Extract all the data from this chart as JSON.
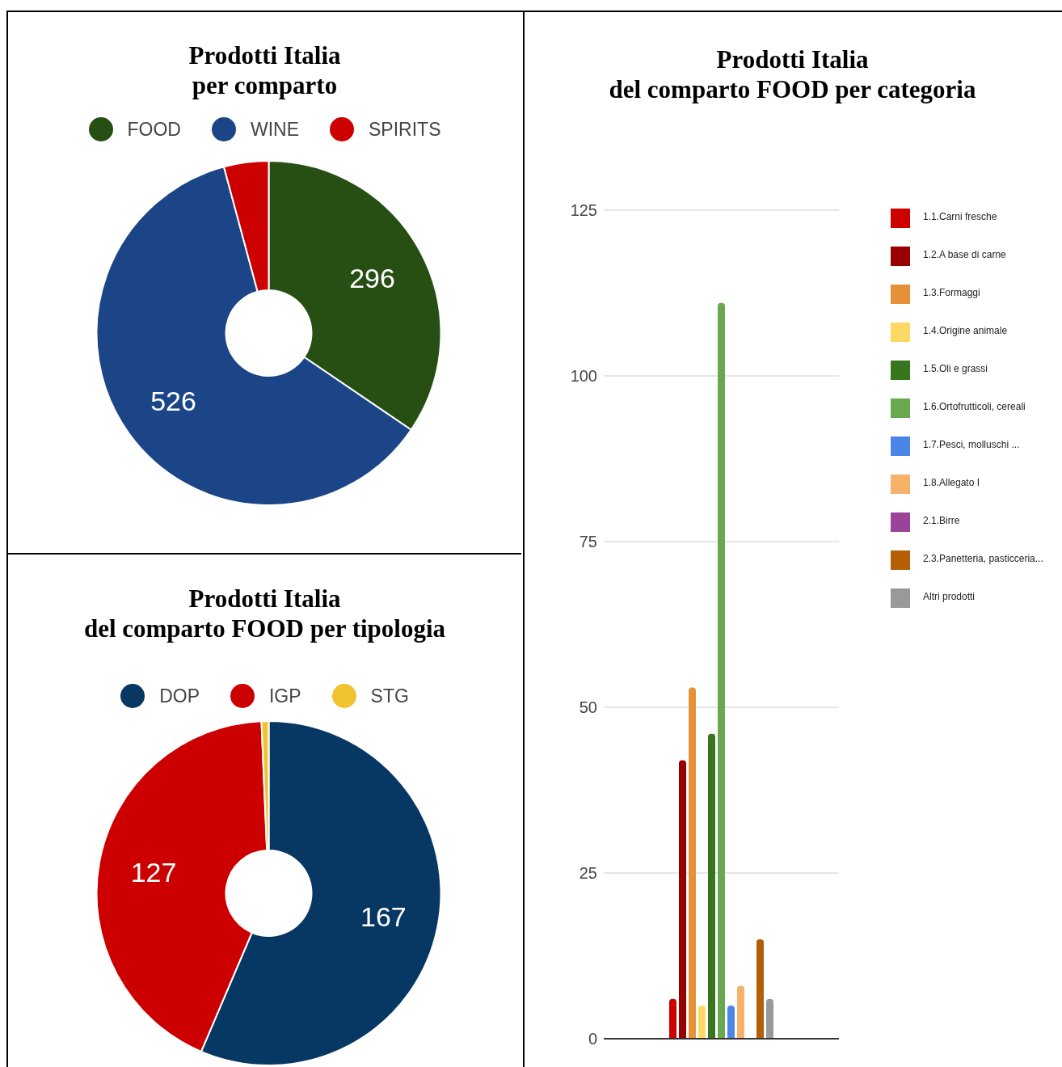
{
  "chart_data": [
    {
      "type": "donut",
      "title": "Prodotti Italia\nper comparto",
      "categories": [
        "FOOD",
        "WINE",
        "SPIRITS"
      ],
      "values": [
        296,
        526,
        36
      ],
      "colors": [
        "#274e13",
        "#1c4587",
        "#cc0000"
      ],
      "value_labels": [
        "296",
        "526",
        null
      ],
      "legend": "top"
    },
    {
      "type": "bar",
      "title": "Prodotti Italia\ndel comparto FOOD per categoria",
      "categories": [
        null
      ],
      "ylim": [
        0,
        125
      ],
      "yticks": [
        0,
        25,
        50,
        75,
        100,
        125
      ],
      "grid": "y",
      "legend": "right",
      "series": [
        {
          "name": "1.1.Carni fresche",
          "color": "#cc0000",
          "values": [
            6
          ]
        },
        {
          "name": "1.2.A base di carne",
          "color": "#990000",
          "values": [
            42
          ]
        },
        {
          "name": "1.3.Formaggi",
          "color": "#e69138",
          "values": [
            53
          ]
        },
        {
          "name": "1.4.Origine animale",
          "color": "#ffd966",
          "values": [
            5
          ]
        },
        {
          "name": "1.5.Oli e grassi",
          "color": "#38761d",
          "values": [
            46
          ]
        },
        {
          "name": "1.6.Ortofrutticoli, cereali",
          "color": "#6aa84f",
          "values": [
            111
          ]
        },
        {
          "name": "1.7.Pesci, molluschi ...",
          "color": "#4a86e8",
          "values": [
            5
          ]
        },
        {
          "name": "1.8.Allegato I",
          "color": "#f6b26b",
          "values": [
            8
          ]
        },
        {
          "name": "2.1.Birre",
          "color": "#994499",
          "values": [
            0
          ]
        },
        {
          "name": "2.3.Panetteria, pasticceria...",
          "color": "#b45f06",
          "values": [
            15
          ]
        },
        {
          "name": "Altri prodotti",
          "color": "#999999",
          "values": [
            6
          ]
        }
      ]
    },
    {
      "type": "donut",
      "title": "Prodotti Italia\ndel comparto FOOD per tipologia",
      "categories": [
        "DOP",
        "IGP",
        "STG"
      ],
      "values": [
        167,
        127,
        2
      ],
      "colors": [
        "#073763",
        "#cc0000",
        "#f1c232"
      ],
      "value_labels": [
        "167",
        "127",
        null
      ],
      "legend": "top"
    }
  ]
}
